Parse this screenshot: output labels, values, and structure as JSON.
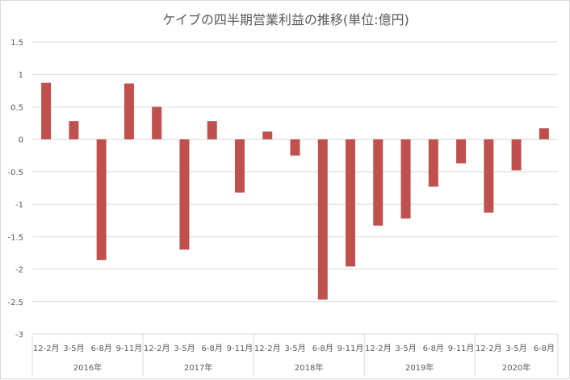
{
  "chart_data": {
    "type": "bar",
    "title": "ケイブの四半期営業利益の推移(単位:億円)",
    "xlabel": "",
    "ylabel": "",
    "ylim": [
      -3,
      1.5
    ],
    "yticks": [
      "1.5",
      "1",
      "0.5",
      "0",
      "-0.5",
      "-1",
      "-1.5",
      "-2",
      "-2.5",
      "-3"
    ],
    "ytick_values": [
      1.5,
      1,
      0.5,
      0,
      -0.5,
      -1,
      -1.5,
      -2,
      -2.5,
      -3
    ],
    "grid": true,
    "legend": "none",
    "bar_color": "#c0504d",
    "categories": [
      "12-2月",
      "3-5月",
      "6-8月",
      "9-11月",
      "12-2月",
      "3-5月",
      "6-8月",
      "9-11月",
      "12-2月",
      "3-5月",
      "6-8月",
      "9-11月",
      "12-2月",
      "3-5月",
      "6-8月",
      "9-11月",
      "12-2月",
      "3-5月",
      "6-8月"
    ],
    "values": [
      0.87,
      0.28,
      -1.86,
      0.86,
      0.5,
      -1.7,
      0.28,
      -0.82,
      0.12,
      -0.25,
      -2.47,
      -1.96,
      -1.33,
      -1.22,
      -0.73,
      -0.37,
      -1.13,
      -0.48,
      0.17
    ],
    "groups": [
      {
        "label": "2016年",
        "count": 4
      },
      {
        "label": "2017年",
        "count": 4
      },
      {
        "label": "2018年",
        "count": 4
      },
      {
        "label": "2019年",
        "count": 4
      },
      {
        "label": "2020年",
        "count": 3
      }
    ]
  }
}
